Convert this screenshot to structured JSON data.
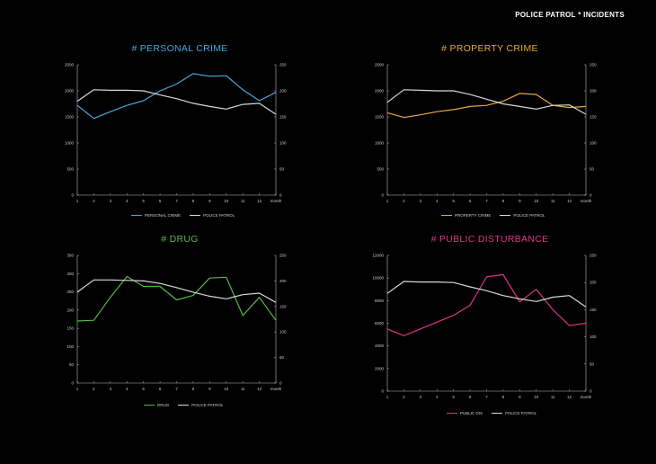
{
  "page": {
    "title": "POLICE PATROL * INCIDENTS"
  },
  "colors": {
    "background": "#000000",
    "police": "#d9d9d9",
    "axis": "#bbbbbb"
  },
  "chart_data": [
    {
      "type": "line",
      "title": "# PERSONAL CRIME",
      "color": "#4aa8dc",
      "categories": [
        "1",
        "2",
        "3",
        "4",
        "5",
        "6",
        "7",
        "8",
        "9",
        "10",
        "11",
        "12",
        "month"
      ],
      "y_left": {
        "lim": [
          0,
          2500
        ],
        "ticks": [
          0,
          500,
          1000,
          1500,
          2000,
          2500
        ]
      },
      "y_right": {
        "lim": [
          0,
          250
        ],
        "ticks": [
          0,
          50,
          100,
          150,
          200,
          250
        ]
      },
      "series": [
        {
          "name": "PERSONAL CRIME",
          "axis": "left",
          "values": [
            1720,
            1470,
            1600,
            1720,
            1810,
            2000,
            2130,
            2330,
            2280,
            2290,
            2020,
            1810,
            1970
          ]
        },
        {
          "name": "POLICE PATROL",
          "axis": "right",
          "values": [
            180,
            202,
            201,
            201,
            200,
            192,
            185,
            176,
            170,
            165,
            174,
            176,
            155
          ]
        }
      ]
    },
    {
      "type": "line",
      "title": "# PROPERTY CRIME",
      "color": "#e8a93a",
      "categories": [
        "1",
        "2",
        "3",
        "4",
        "5",
        "6",
        "7",
        "8",
        "9",
        "10",
        "11",
        "12",
        "month"
      ],
      "y_left": {
        "lim": [
          0,
          2500
        ],
        "ticks": [
          0,
          500,
          1000,
          1500,
          2000,
          2500
        ]
      },
      "y_right": {
        "lim": [
          0,
          250
        ],
        "ticks": [
          0,
          50,
          100,
          150,
          200,
          250
        ]
      },
      "series": [
        {
          "name": "PROPERTY CRIME",
          "axis": "left",
          "values": [
            1580,
            1490,
            1540,
            1600,
            1640,
            1700,
            1720,
            1800,
            1950,
            1930,
            1720,
            1680,
            1700
          ]
        },
        {
          "name": "POLICE PATROL",
          "axis": "right",
          "values": [
            178,
            202,
            201,
            200,
            200,
            193,
            184,
            175,
            170,
            165,
            172,
            173,
            155
          ]
        }
      ]
    },
    {
      "type": "line",
      "title": "# DRUG",
      "color": "#5ab84a",
      "categories": [
        "1",
        "2",
        "3",
        "4",
        "5",
        "6",
        "7",
        "8",
        "9",
        "10",
        "11",
        "12",
        "month"
      ],
      "y_left": {
        "lim": [
          0,
          350
        ],
        "ticks": [
          0,
          50,
          100,
          150,
          200,
          250,
          300,
          350
        ]
      },
      "y_right": {
        "lim": [
          0,
          250
        ],
        "ticks": [
          0,
          50,
          100,
          150,
          200,
          250
        ]
      },
      "series": [
        {
          "name": "DRUG",
          "axis": "left",
          "values": [
            170,
            172,
            235,
            292,
            265,
            265,
            228,
            240,
            288,
            290,
            185,
            235,
            172
          ]
        },
        {
          "name": "POLICE PATROL",
          "axis": "right",
          "values": [
            178,
            202,
            202,
            201,
            200,
            195,
            187,
            178,
            170,
            165,
            173,
            176,
            158
          ]
        }
      ]
    },
    {
      "type": "line",
      "title": "# PUBLIC DISTURBANCE",
      "color": "#e0338a",
      "categories": [
        "1",
        "2",
        "3",
        "4",
        "5",
        "6",
        "7",
        "8",
        "9",
        "10",
        "11",
        "12",
        "month"
      ],
      "y_left": {
        "lim": [
          0,
          12000
        ],
        "ticks": [
          0,
          2000,
          4000,
          6000,
          8000,
          10000,
          12000
        ]
      },
      "y_right": {
        "lim": [
          0,
          250
        ],
        "ticks": [
          0,
          50,
          100,
          150,
          200,
          250
        ]
      },
      "series": [
        {
          "name": "PUBLIC DIS",
          "axis": "left",
          "values": [
            5500,
            4900,
            5500,
            6100,
            6700,
            7600,
            10100,
            10300,
            7900,
            9000,
            7200,
            5800,
            6000
          ]
        },
        {
          "name": "POLICE PATROL",
          "axis": "right",
          "values": [
            180,
            202,
            201,
            201,
            200,
            192,
            185,
            176,
            170,
            165,
            173,
            176,
            155
          ]
        }
      ]
    }
  ]
}
